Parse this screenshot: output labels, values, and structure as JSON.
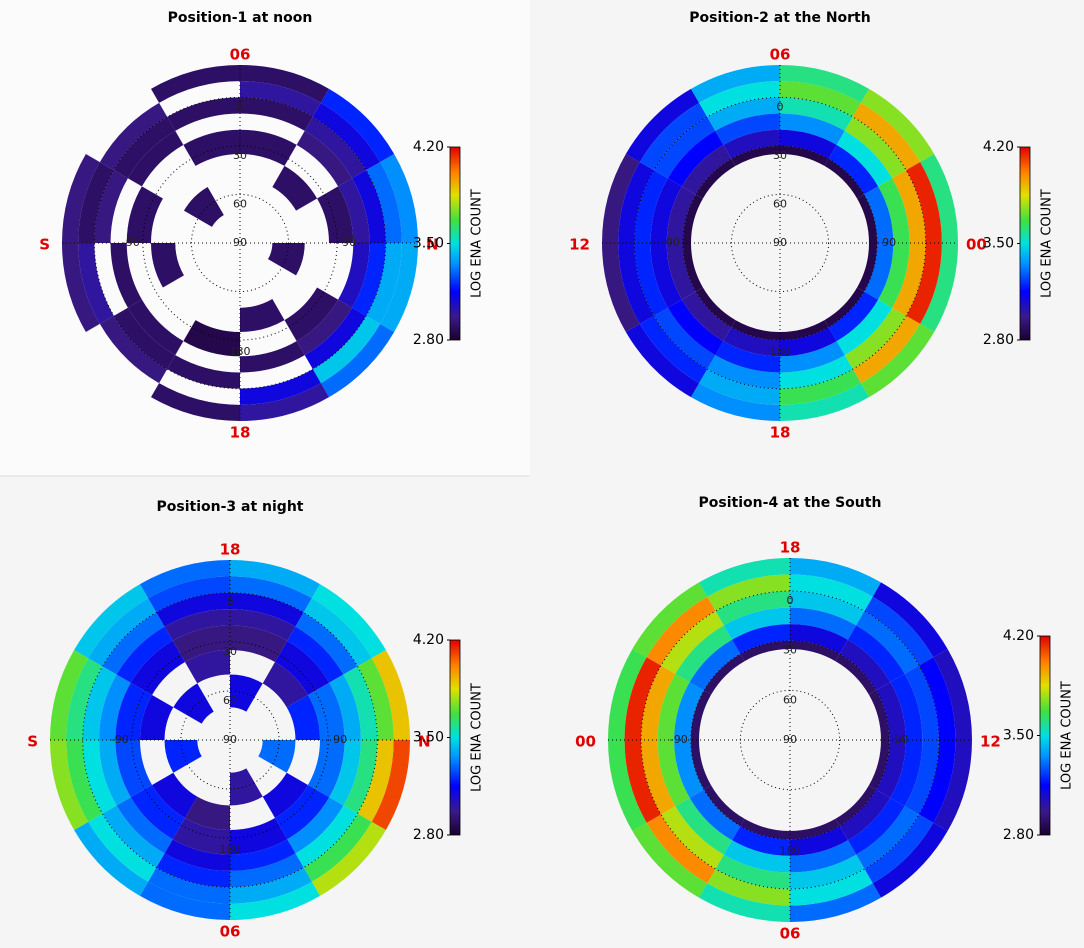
{
  "chart_data": [
    {
      "type": "polar_heatmap",
      "title": "Position-1 at noon",
      "direction_labels": {
        "top": "06",
        "bottom": "18",
        "left": "S",
        "right": "N"
      },
      "rlim": [
        90,
        -20
      ],
      "rticks": [
        90,
        60,
        30,
        0
      ],
      "azimuth_ticks": [
        -90,
        90,
        180
      ],
      "rbins": [
        -20,
        -10,
        0,
        10,
        20,
        35,
        50,
        70
      ],
      "abins": [
        0,
        30,
        60,
        90,
        120,
        150,
        180,
        210,
        240,
        270,
        300,
        330,
        360
      ],
      "values": [
        [
          2.9,
          3.2,
          3.35,
          3.4,
          3.3,
          3.0,
          2.9,
          null,
          2.95,
          2.95,
          null,
          2.9
        ],
        [
          3.0,
          3.1,
          3.3,
          3.4,
          3.45,
          3.1,
          null,
          2.95,
          3.0,
          2.9,
          2.95,
          null
        ],
        [
          2.9,
          3.0,
          3.1,
          3.2,
          3.1,
          null,
          2.9,
          2.9,
          null,
          2.95,
          2.9,
          2.9
        ],
        [
          null,
          2.95,
          3.0,
          3.05,
          2.95,
          2.9,
          null,
          2.9,
          2.9,
          null,
          2.9,
          null
        ],
        [
          2.9,
          null,
          2.9,
          null,
          2.9,
          null,
          2.85,
          null,
          null,
          2.9,
          null,
          2.9
        ],
        [
          null,
          2.9,
          null,
          null,
          null,
          2.9,
          null,
          null,
          2.9,
          null,
          null,
          null
        ],
        [
          null,
          null,
          null,
          2.9,
          null,
          null,
          null,
          null,
          null,
          null,
          2.9,
          null
        ]
      ],
      "colorbar": {
        "label": "LOG ENA COUNT",
        "colormap": "jet",
        "lim": [
          2.8,
          4.2
        ],
        "ticks": [
          {
            "value": 2.8,
            "label": "2.80"
          },
          {
            "value": 3.5,
            "label": "3.50"
          },
          {
            "value": 4.2,
            "label": "4.20"
          }
        ]
      }
    },
    {
      "type": "polar_heatmap",
      "title": "Position-2 at the North",
      "direction_labels": {
        "top": "06",
        "bottom": "18",
        "left": "12",
        "right": "00"
      },
      "rlim": [
        90,
        -20
      ],
      "rticks": [
        90,
        60,
        30,
        0
      ],
      "azimuth_ticks": [
        -90,
        90,
        180
      ],
      "rbins": [
        -20,
        -10,
        0,
        10,
        20,
        30,
        35
      ],
      "abins": [
        0,
        30,
        60,
        90,
        120,
        150,
        180,
        210,
        240,
        270,
        300,
        330,
        360
      ],
      "values": [
        [
          3.6,
          3.75,
          3.6,
          3.6,
          3.7,
          3.55,
          3.35,
          3.1,
          2.95,
          2.95,
          3.1,
          3.4
        ],
        [
          3.7,
          3.95,
          4.15,
          4.15,
          3.95,
          3.65,
          3.4,
          3.2,
          3.1,
          3.1,
          3.25,
          3.5
        ],
        [
          3.55,
          3.75,
          3.95,
          3.95,
          3.75,
          3.5,
          3.35,
          3.25,
          3.2,
          3.2,
          3.25,
          3.4
        ],
        [
          3.35,
          3.5,
          3.65,
          3.65,
          3.5,
          3.35,
          3.2,
          3.15,
          3.1,
          3.1,
          3.15,
          3.25
        ],
        [
          3.1,
          3.2,
          3.3,
          3.3,
          3.2,
          3.1,
          3.05,
          3.0,
          3.0,
          3.0,
          3.0,
          3.05
        ],
        [
          2.85,
          2.85,
          2.85,
          2.85,
          2.85,
          2.85,
          2.85,
          2.85,
          2.85,
          2.85,
          2.85,
          2.85
        ]
      ],
      "colorbar": {
        "label": "LOG ENA COUNT",
        "colormap": "jet",
        "lim": [
          2.8,
          4.2
        ],
        "ticks": [
          {
            "value": 2.8,
            "label": "2.80"
          },
          {
            "value": 3.5,
            "label": "3.50"
          },
          {
            "value": 4.2,
            "label": "4.20"
          }
        ]
      }
    },
    {
      "type": "polar_heatmap",
      "title": "Position-3 at night",
      "direction_labels": {
        "top": "18",
        "bottom": "06",
        "left": "S",
        "right": "N"
      },
      "rlim": [
        90,
        -20
      ],
      "rticks": [
        90,
        60,
        30,
        0
      ],
      "azimuth_ticks": [
        -90,
        90,
        180
      ],
      "rbins": [
        -20,
        -10,
        0,
        10,
        20,
        35,
        50,
        70
      ],
      "abins": [
        0,
        30,
        60,
        90,
        120,
        150,
        180,
        210,
        240,
        270,
        300,
        330,
        360
      ],
      "values": [
        [
          3.4,
          3.5,
          3.9,
          4.1,
          3.8,
          3.5,
          3.3,
          3.4,
          3.75,
          3.7,
          3.45,
          3.3
        ],
        [
          3.3,
          3.45,
          3.7,
          3.9,
          3.65,
          3.4,
          3.3,
          3.5,
          3.65,
          3.6,
          3.4,
          3.25
        ],
        [
          3.1,
          3.3,
          3.55,
          3.6,
          3.5,
          3.3,
          3.2,
          3.4,
          3.5,
          3.45,
          3.3,
          3.1
        ],
        [
          3.0,
          3.2,
          3.4,
          3.45,
          3.35,
          3.2,
          3.1,
          3.3,
          3.4,
          3.35,
          3.2,
          3.0
        ],
        [
          2.95,
          3.1,
          3.3,
          3.3,
          3.2,
          3.1,
          3.0,
          3.2,
          3.25,
          3.2,
          3.1,
          2.95
        ],
        [
          null,
          3.0,
          3.2,
          null,
          3.1,
          null,
          2.95,
          3.1,
          null,
          3.1,
          null,
          3.0
        ],
        [
          3.1,
          null,
          null,
          3.3,
          null,
          3.0,
          null,
          null,
          3.2,
          null,
          3.1,
          null
        ]
      ],
      "colorbar": {
        "label": "LOG ENA COUNT",
        "colormap": "jet",
        "lim": [
          2.8,
          4.2
        ],
        "ticks": [
          {
            "value": 2.8,
            "label": "2.80"
          },
          {
            "value": 3.5,
            "label": "3.50"
          },
          {
            "value": 4.2,
            "label": "4.20"
          }
        ]
      }
    },
    {
      "type": "polar_heatmap",
      "title": "Position-4 at the South",
      "direction_labels": {
        "top": "18",
        "bottom": "06",
        "left": "00",
        "right": "12"
      },
      "rlim": [
        90,
        -20
      ],
      "rticks": [
        90,
        60,
        30,
        0
      ],
      "azimuth_ticks": [
        -90,
        90,
        180
      ],
      "rbins": [
        -20,
        -10,
        0,
        10,
        20,
        30,
        35
      ],
      "abins": [
        0,
        30,
        60,
        90,
        120,
        150,
        180,
        210,
        240,
        270,
        300,
        330,
        360
      ],
      "values": [
        [
          3.4,
          3.1,
          3.05,
          3.05,
          3.1,
          3.3,
          3.55,
          3.7,
          3.65,
          3.65,
          3.7,
          3.55
        ],
        [
          3.5,
          3.25,
          3.15,
          3.15,
          3.25,
          3.5,
          3.75,
          4.0,
          4.15,
          4.15,
          4.0,
          3.75
        ],
        [
          3.45,
          3.3,
          3.25,
          3.25,
          3.3,
          3.45,
          3.6,
          3.8,
          3.95,
          3.95,
          3.8,
          3.6
        ],
        [
          3.3,
          3.2,
          3.2,
          3.2,
          3.2,
          3.3,
          3.45,
          3.6,
          3.7,
          3.7,
          3.6,
          3.45
        ],
        [
          3.1,
          3.05,
          3.05,
          3.05,
          3.05,
          3.1,
          3.2,
          3.3,
          3.35,
          3.35,
          3.3,
          3.2
        ],
        [
          2.9,
          2.9,
          2.9,
          2.9,
          2.9,
          2.9,
          2.9,
          2.9,
          2.9,
          2.9,
          2.9,
          2.9
        ]
      ],
      "colorbar": {
        "label": "LOG ENA COUNT",
        "colormap": "jet",
        "lim": [
          2.8,
          4.2
        ],
        "ticks": [
          {
            "value": 2.8,
            "label": "2.80"
          },
          {
            "value": 3.5,
            "label": "3.50"
          },
          {
            "value": 4.2,
            "label": "4.20"
          }
        ]
      }
    }
  ]
}
